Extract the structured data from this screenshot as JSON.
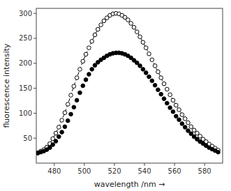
{
  "chart_data": {
    "type": "line",
    "xlabel": "wavelength /nm →",
    "ylabel": "fluorescence intensity",
    "xlim": [
      468,
      592
    ],
    "ylim": [
      0,
      310
    ],
    "xticks": [
      480,
      500,
      520,
      540,
      560,
      580
    ],
    "yticks": [
      50,
      100,
      150,
      200,
      250,
      300
    ],
    "grid": false,
    "x": [
      469,
      471,
      473,
      475,
      477,
      479,
      481,
      483,
      485,
      487,
      489,
      491,
      493,
      495,
      497,
      499,
      501,
      503,
      505,
      507,
      509,
      511,
      513,
      515,
      517,
      519,
      521,
      523,
      525,
      527,
      529,
      531,
      533,
      535,
      537,
      539,
      541,
      543,
      545,
      547,
      549,
      551,
      553,
      555,
      557,
      559,
      561,
      563,
      565,
      567,
      569,
      571,
      573,
      575,
      577,
      579,
      581,
      583,
      585,
      587,
      589
    ],
    "series": [
      {
        "color": "#000000",
        "marker": "open-circle",
        "line_style": "dashed",
        "values": [
          21,
          24,
          27,
          32,
          39,
          49,
          60,
          72,
          86,
          101,
          118,
          136,
          154,
          171,
          188,
          204,
          218,
          231,
          244,
          257,
          268,
          277,
          285,
          291,
          296,
          299,
          300,
          299,
          296,
          292,
          287,
          280,
          272,
          263,
          253,
          242,
          231,
          219,
          207,
          195,
          183,
          171,
          159,
          148,
          137,
          126,
          116,
          107,
          97,
          89,
          81,
          73,
          66,
          60,
          54,
          48,
          43,
          38,
          34,
          30,
          26
        ]
      },
      {
        "color": "#000000",
        "marker": "circle",
        "line_style": "none",
        "values": [
          20,
          22,
          24,
          27,
          31,
          37,
          44,
          53,
          62,
          73,
          85,
          98,
          112,
          126,
          141,
          155,
          167,
          178,
          188,
          196,
          202,
          207,
          211,
          215,
          218,
          220,
          221,
          221,
          220,
          218,
          215,
          211,
          206,
          201,
          195,
          188,
          181,
          173,
          165,
          156,
          147,
          138,
          129,
          120,
          111,
          103,
          94,
          87,
          79,
          72,
          65,
          59,
          53,
          48,
          43,
          39,
          35,
          31,
          28,
          25,
          22
        ]
      }
    ]
  }
}
